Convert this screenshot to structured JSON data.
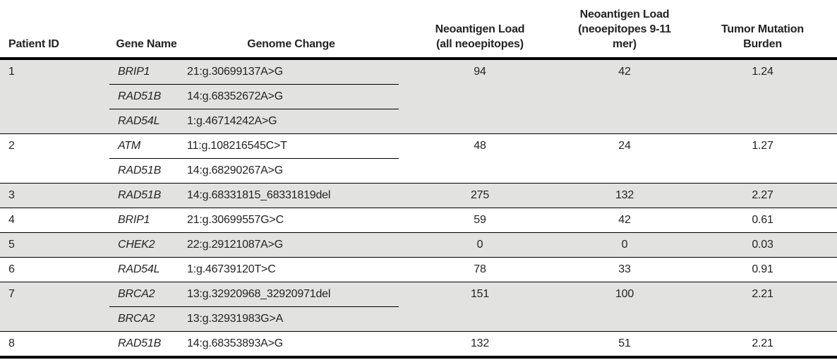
{
  "colors": {
    "shaded_row": "#e2e2e1",
    "rule": "#000000",
    "text": "#232323"
  },
  "table": {
    "columns": [
      {
        "label": "Patient ID"
      },
      {
        "label": "Gene Name"
      },
      {
        "label": "Genome Change"
      },
      {
        "label": "Neoantigen Load\n(all neoepitopes)"
      },
      {
        "label": "Neoantigen Load\n(neoepitopes 9-11\nmer)"
      },
      {
        "label": "Tumor Mutation\nBurden"
      }
    ],
    "patients": [
      {
        "id": "1",
        "shaded": true,
        "mutations": [
          {
            "gene": "BRIP1",
            "change": "21:g.30699137A>G"
          },
          {
            "gene": "RAD51B",
            "change": "14:g.68352672A>G"
          },
          {
            "gene": "RAD54L",
            "change": "1:g.46714242A>G"
          }
        ],
        "neoantigen_load_all": "94",
        "neoantigen_load_9_11mer": "42",
        "tumor_mutation_burden": "1.24"
      },
      {
        "id": "2",
        "shaded": false,
        "mutations": [
          {
            "gene": "ATM",
            "change": "11:g.108216545C>T"
          },
          {
            "gene": "RAD51B",
            "change": "14:g.68290267A>G"
          }
        ],
        "neoantigen_load_all": "48",
        "neoantigen_load_9_11mer": "24",
        "tumor_mutation_burden": "1.27"
      },
      {
        "id": "3",
        "shaded": true,
        "mutations": [
          {
            "gene": "RAD51B",
            "change": "14:g.68331815_68331819del"
          }
        ],
        "neoantigen_load_all": "275",
        "neoantigen_load_9_11mer": "132",
        "tumor_mutation_burden": "2.27"
      },
      {
        "id": "4",
        "shaded": false,
        "mutations": [
          {
            "gene": "BRIP1",
            "change": "21:g.30699557G>C"
          }
        ],
        "neoantigen_load_all": "59",
        "neoantigen_load_9_11mer": "42",
        "tumor_mutation_burden": "0.61"
      },
      {
        "id": "5",
        "shaded": true,
        "mutations": [
          {
            "gene": "CHEK2",
            "change": "22:g.29121087A>G"
          }
        ],
        "neoantigen_load_all": "0",
        "neoantigen_load_9_11mer": "0",
        "tumor_mutation_burden": "0.03"
      },
      {
        "id": "6",
        "shaded": false,
        "mutations": [
          {
            "gene": "RAD54L",
            "change": "1:g.46739120T>C"
          }
        ],
        "neoantigen_load_all": "78",
        "neoantigen_load_9_11mer": "33",
        "tumor_mutation_burden": "0.91"
      },
      {
        "id": "7",
        "shaded": true,
        "mutations": [
          {
            "gene": "BRCA2",
            "change": "13:g.32920968_32920971del"
          },
          {
            "gene": "BRCA2",
            "change": "13:g.32931983G>A"
          }
        ],
        "neoantigen_load_all": "151",
        "neoantigen_load_9_11mer": "100",
        "tumor_mutation_burden": "2.21"
      },
      {
        "id": "8",
        "shaded": false,
        "mutations": [
          {
            "gene": "RAD51B",
            "change": "14:g.68353893A>G"
          }
        ],
        "neoantigen_load_all": "132",
        "neoantigen_load_9_11mer": "51",
        "tumor_mutation_burden": "2.21"
      }
    ]
  }
}
